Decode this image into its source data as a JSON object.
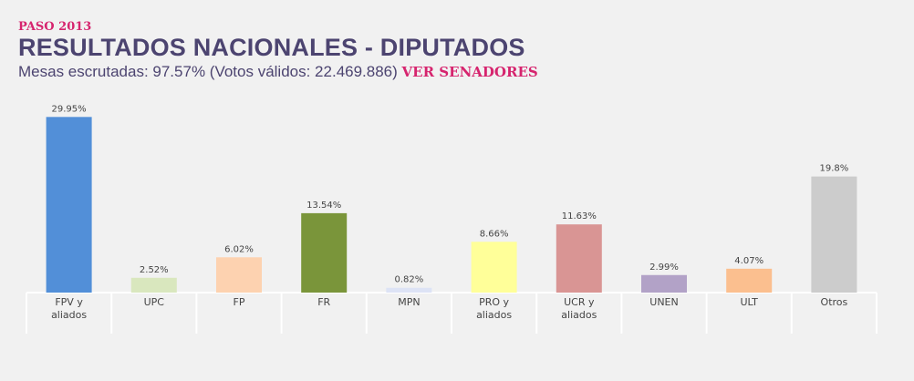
{
  "header": {
    "kicker": "PASO 2013",
    "title": "RESULTADOS NACIONALES - DIPUTADOS",
    "subtitle": "Mesas escrutadas: 97.57% (Votos válidos: 22.469.886)",
    "link_label": "VER SENADORES"
  },
  "chart_data": {
    "type": "bar",
    "categories": [
      [
        "FPV y",
        "aliados"
      ],
      [
        "UPC"
      ],
      [
        "FP"
      ],
      [
        "FR"
      ],
      [
        "MPN"
      ],
      [
        "PRO y",
        "aliados"
      ],
      [
        "UCR y",
        "aliados"
      ],
      [
        "UNEN"
      ],
      [
        "ULT"
      ],
      [
        "Otros"
      ]
    ],
    "values": [
      29.95,
      2.52,
      6.02,
      13.54,
      0.82,
      8.66,
      11.63,
      2.99,
      4.07,
      19.8
    ],
    "value_labels": [
      "29.95%",
      "2.52%",
      "6.02%",
      "13.54%",
      "0.82%",
      "8.66%",
      "11.63%",
      "2.99%",
      "4.07%",
      "19.8%"
    ],
    "colors": [
      "#528fd8",
      "#d9e7be",
      "#fdd2b0",
      "#7a953a",
      "#dde3f5",
      "#ffff99",
      "#d99594",
      "#b2a2c7",
      "#fbbf8f",
      "#cccccc"
    ],
    "ylim": [
      0,
      30
    ],
    "grid": false,
    "legend": "none"
  }
}
